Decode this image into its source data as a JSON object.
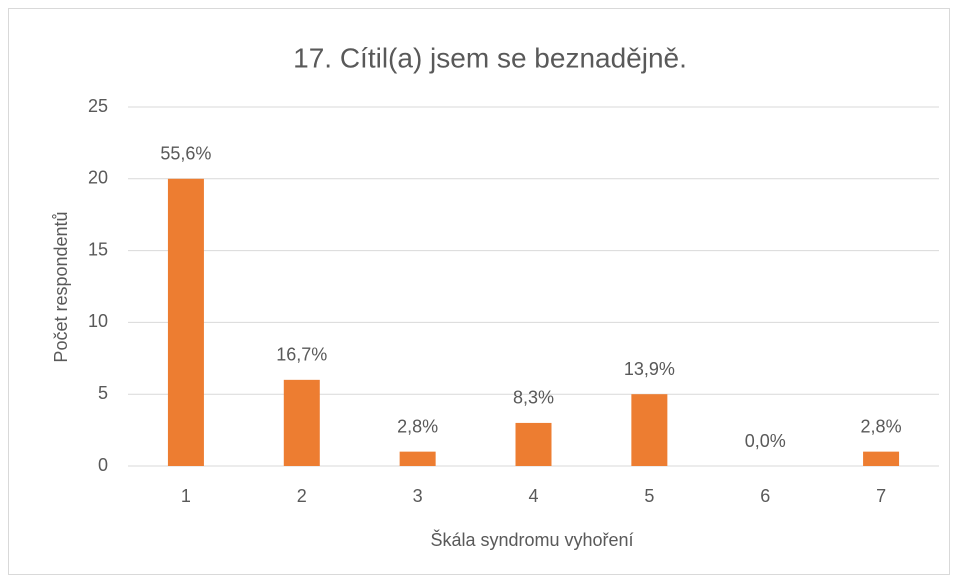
{
  "chart_data": {
    "type": "bar",
    "title": "17. Cítil(a) jsem se beznadějně.",
    "x_label": "Škála syndromu vyhoření",
    "y_label": "Počet respondentů",
    "categories": [
      "1",
      "2",
      "3",
      "4",
      "5",
      "6",
      "7"
    ],
    "values": [
      20,
      6,
      1,
      3,
      5,
      0,
      1
    ],
    "value_labels": [
      "55,6%",
      "16,7%",
      "2,8%",
      "8,3%",
      "13,9%",
      "0,0%",
      "2,8%"
    ],
    "color": "#ed7d31",
    "ylim": [
      0,
      25
    ],
    "yticks": [
      0,
      5,
      10,
      15,
      20,
      25
    ],
    "grid": true
  }
}
